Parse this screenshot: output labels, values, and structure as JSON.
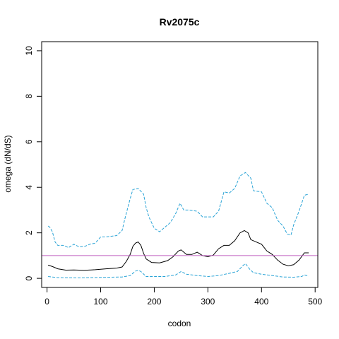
{
  "chart_data": {
    "type": "line",
    "title": "Rv2075c",
    "xlabel": "codon",
    "ylabel": "omega (dN/dS)",
    "xlim": [
      -10,
      505
    ],
    "ylim": [
      -0.4,
      10.4
    ],
    "x_ticks": [
      0,
      100,
      200,
      300,
      400,
      500
    ],
    "y_ticks": [
      0,
      2,
      4,
      6,
      8,
      10
    ],
    "grid": false,
    "legend": "none",
    "reference_line": {
      "y": 1,
      "color": "#c060c0"
    },
    "series": [
      {
        "style": "solid",
        "color": "#000000",
        "points": [
          [
            2,
            0.58
          ],
          [
            10,
            0.52
          ],
          [
            20,
            0.42
          ],
          [
            35,
            0.36
          ],
          [
            50,
            0.37
          ],
          [
            70,
            0.35
          ],
          [
            90,
            0.38
          ],
          [
            110,
            0.42
          ],
          [
            130,
            0.45
          ],
          [
            140,
            0.5
          ],
          [
            148,
            0.75
          ],
          [
            155,
            1.05
          ],
          [
            160,
            1.4
          ],
          [
            165,
            1.55
          ],
          [
            170,
            1.6
          ],
          [
            175,
            1.45
          ],
          [
            180,
            1.1
          ],
          [
            185,
            0.85
          ],
          [
            195,
            0.7
          ],
          [
            210,
            0.68
          ],
          [
            225,
            0.78
          ],
          [
            235,
            0.95
          ],
          [
            245,
            1.2
          ],
          [
            250,
            1.25
          ],
          [
            260,
            1.05
          ],
          [
            270,
            1.05
          ],
          [
            280,
            1.15
          ],
          [
            290,
            1.0
          ],
          [
            300,
            0.95
          ],
          [
            310,
            1.02
          ],
          [
            320,
            1.3
          ],
          [
            330,
            1.45
          ],
          [
            340,
            1.45
          ],
          [
            350,
            1.65
          ],
          [
            360,
            2.0
          ],
          [
            368,
            2.1
          ],
          [
            375,
            2.0
          ],
          [
            380,
            1.7
          ],
          [
            390,
            1.6
          ],
          [
            400,
            1.5
          ],
          [
            410,
            1.2
          ],
          [
            420,
            1.05
          ],
          [
            430,
            0.8
          ],
          [
            440,
            0.62
          ],
          [
            450,
            0.55
          ],
          [
            460,
            0.6
          ],
          [
            470,
            0.8
          ],
          [
            480,
            1.12
          ],
          [
            488,
            1.12
          ]
        ]
      },
      {
        "style": "dashed",
        "color": "#29a3d6",
        "points": [
          [
            2,
            2.3
          ],
          [
            5,
            2.25
          ],
          [
            10,
            2.05
          ],
          [
            15,
            1.6
          ],
          [
            20,
            1.45
          ],
          [
            30,
            1.45
          ],
          [
            40,
            1.35
          ],
          [
            50,
            1.5
          ],
          [
            60,
            1.38
          ],
          [
            70,
            1.4
          ],
          [
            80,
            1.5
          ],
          [
            90,
            1.55
          ],
          [
            100,
            1.82
          ],
          [
            110,
            1.82
          ],
          [
            120,
            1.85
          ],
          [
            130,
            1.88
          ],
          [
            140,
            2.1
          ],
          [
            145,
            2.6
          ],
          [
            150,
            3.05
          ],
          [
            155,
            3.5
          ],
          [
            160,
            3.9
          ],
          [
            170,
            3.95
          ],
          [
            180,
            3.7
          ],
          [
            185,
            3.1
          ],
          [
            190,
            2.7
          ],
          [
            200,
            2.2
          ],
          [
            210,
            2.05
          ],
          [
            220,
            2.25
          ],
          [
            230,
            2.45
          ],
          [
            240,
            2.85
          ],
          [
            248,
            3.3
          ],
          [
            255,
            3.0
          ],
          [
            265,
            3.0
          ],
          [
            280,
            2.95
          ],
          [
            290,
            2.7
          ],
          [
            310,
            2.7
          ],
          [
            320,
            2.95
          ],
          [
            330,
            3.8
          ],
          [
            340,
            3.75
          ],
          [
            350,
            3.95
          ],
          [
            360,
            4.5
          ],
          [
            370,
            4.65
          ],
          [
            380,
            4.4
          ],
          [
            385,
            3.85
          ],
          [
            400,
            3.8
          ],
          [
            410,
            3.3
          ],
          [
            420,
            3.1
          ],
          [
            430,
            2.55
          ],
          [
            440,
            2.3
          ],
          [
            448,
            1.95
          ],
          [
            455,
            1.9
          ],
          [
            460,
            2.35
          ],
          [
            470,
            2.95
          ],
          [
            480,
            3.65
          ],
          [
            488,
            3.7
          ]
        ]
      },
      {
        "style": "dashed",
        "color": "#29a3d6",
        "points": [
          [
            2,
            0.08
          ],
          [
            20,
            0.03
          ],
          [
            60,
            0.02
          ],
          [
            100,
            0.04
          ],
          [
            140,
            0.06
          ],
          [
            155,
            0.12
          ],
          [
            165,
            0.32
          ],
          [
            170,
            0.35
          ],
          [
            175,
            0.3
          ],
          [
            185,
            0.08
          ],
          [
            220,
            0.08
          ],
          [
            240,
            0.15
          ],
          [
            250,
            0.3
          ],
          [
            260,
            0.18
          ],
          [
            280,
            0.12
          ],
          [
            300,
            0.08
          ],
          [
            320,
            0.12
          ],
          [
            340,
            0.22
          ],
          [
            355,
            0.3
          ],
          [
            365,
            0.55
          ],
          [
            370,
            0.65
          ],
          [
            378,
            0.4
          ],
          [
            385,
            0.25
          ],
          [
            400,
            0.18
          ],
          [
            420,
            0.12
          ],
          [
            440,
            0.06
          ],
          [
            460,
            0.05
          ],
          [
            475,
            0.08
          ],
          [
            480,
            0.15
          ],
          [
            488,
            0.1
          ]
        ]
      }
    ]
  }
}
